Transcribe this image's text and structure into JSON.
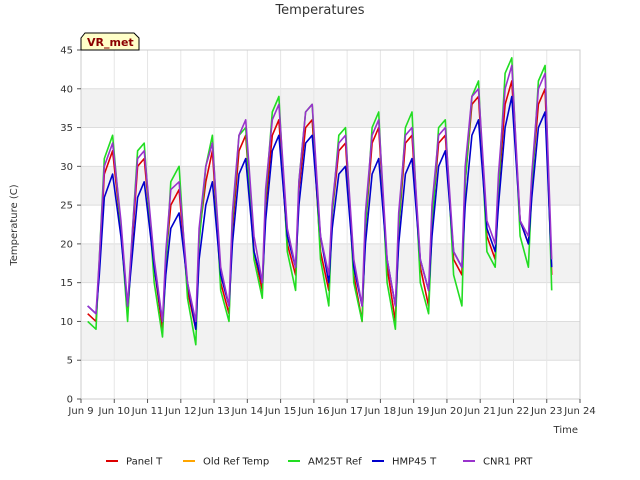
{
  "chart_data": {
    "type": "line",
    "title": "Temperatures",
    "xlabel": "Time",
    "ylabel": "Temperature (C)",
    "badge": "VR_met",
    "xlim": [
      9.0,
      24.0
    ],
    "ylim": [
      0,
      45
    ],
    "yticks": [
      0,
      5,
      10,
      15,
      20,
      25,
      30,
      35,
      40,
      45
    ],
    "xticks": [
      {
        "v": 9,
        "label": "Jun 9"
      },
      {
        "v": 10,
        "label": "Jun 10"
      },
      {
        "v": 11,
        "label": "Jun 11"
      },
      {
        "v": 12,
        "label": "Jun 12"
      },
      {
        "v": 13,
        "label": "Jun 13"
      },
      {
        "v": 14,
        "label": "Jun 14"
      },
      {
        "v": 15,
        "label": "Jun 15"
      },
      {
        "v": 16,
        "label": "Jun 16"
      },
      {
        "v": 17,
        "label": "Jun 17"
      },
      {
        "v": 18,
        "label": "Jun 18"
      },
      {
        "v": 19,
        "label": "Jun 19"
      },
      {
        "v": 20,
        "label": "Jun 20"
      },
      {
        "v": 21,
        "label": "Jun 21"
      },
      {
        "v": 22,
        "label": "Jun 22"
      },
      {
        "v": 23,
        "label": "Jun 23"
      },
      {
        "v": 24,
        "label": "Jun 24"
      }
    ],
    "grid": true,
    "legend": "bottom",
    "series": [
      {
        "name": "Panel T",
        "color": "#dd0000",
        "x": [
          9.2,
          9.45,
          9.55,
          9.7,
          9.95,
          10.2,
          10.4,
          10.55,
          10.7,
          10.9,
          11.2,
          11.45,
          11.55,
          11.7,
          11.95,
          12.2,
          12.45,
          12.55,
          12.75,
          12.95,
          13.2,
          13.45,
          13.55,
          13.75,
          13.95,
          14.2,
          14.45,
          14.55,
          14.75,
          14.95,
          15.2,
          15.45,
          15.55,
          15.75,
          15.95,
          16.2,
          16.45,
          16.55,
          16.75,
          16.95,
          17.2,
          17.45,
          17.55,
          17.75,
          17.95,
          18.2,
          18.45,
          18.55,
          18.75,
          18.95,
          19.2,
          19.45,
          19.55,
          19.75,
          19.95,
          20.2,
          20.45,
          20.55,
          20.75,
          20.95,
          21.2,
          21.45,
          21.55,
          21.75,
          21.95,
          22.2,
          22.45,
          22.55,
          22.75,
          22.95,
          23.15
        ],
        "y": [
          11,
          10,
          17,
          29,
          32,
          22,
          11,
          21,
          30,
          31,
          17,
          9,
          18,
          25,
          27,
          14,
          9,
          21,
          28,
          32,
          15,
          11,
          22,
          32,
          34,
          19,
          14,
          25,
          34,
          36,
          20,
          16,
          27,
          35,
          36,
          19,
          14,
          24,
          32,
          33,
          16,
          10,
          22,
          33,
          35,
          17,
          10,
          22,
          33,
          34,
          17,
          12,
          23,
          33,
          34,
          18,
          16,
          28,
          38,
          39,
          21,
          18,
          27,
          38,
          41,
          23,
          20,
          28,
          38,
          40,
          16
        ]
      },
      {
        "name": "Old Ref Temp",
        "color": "#ffa500",
        "x": [],
        "y": []
      },
      {
        "name": "AM25T Ref",
        "color": "#22dd22",
        "x": [
          9.2,
          9.45,
          9.55,
          9.7,
          9.95,
          10.2,
          10.4,
          10.55,
          10.7,
          10.9,
          11.2,
          11.45,
          11.55,
          11.7,
          11.95,
          12.2,
          12.45,
          12.55,
          12.75,
          12.95,
          13.2,
          13.45,
          13.55,
          13.75,
          13.95,
          14.2,
          14.45,
          14.55,
          14.75,
          14.95,
          15.2,
          15.45,
          15.55,
          15.75,
          15.95,
          16.2,
          16.45,
          16.55,
          16.75,
          16.95,
          17.2,
          17.45,
          17.55,
          17.75,
          17.95,
          18.2,
          18.45,
          18.55,
          18.75,
          18.95,
          19.2,
          19.45,
          19.55,
          19.75,
          19.95,
          20.2,
          20.45,
          20.55,
          20.75,
          20.95,
          21.2,
          21.45,
          21.55,
          21.75,
          21.95,
          22.2,
          22.45,
          22.55,
          22.75,
          22.95,
          23.15
        ],
        "y": [
          10,
          9,
          18,
          31,
          34,
          22,
          10,
          22,
          32,
          33,
          15,
          8,
          17,
          28,
          30,
          13,
          7,
          20,
          30,
          34,
          14,
          10,
          23,
          34,
          35,
          18,
          13,
          26,
          37,
          39,
          19,
          14,
          28,
          37,
          38,
          18,
          12,
          24,
          34,
          35,
          15,
          10,
          22,
          35,
          37,
          15,
          9,
          22,
          35,
          37,
          15,
          11,
          22,
          35,
          36,
          16,
          12,
          28,
          39,
          41,
          19,
          17,
          27,
          42,
          44,
          21,
          17,
          27,
          41,
          43,
          14
        ]
      },
      {
        "name": "HMP45 T",
        "color": "#0000cc",
        "x": [
          9.2,
          9.45,
          9.55,
          9.7,
          9.95,
          10.2,
          10.4,
          10.55,
          10.7,
          10.9,
          11.2,
          11.45,
          11.55,
          11.7,
          11.95,
          12.2,
          12.45,
          12.55,
          12.75,
          12.95,
          13.2,
          13.45,
          13.55,
          13.75,
          13.95,
          14.2,
          14.45,
          14.55,
          14.75,
          14.95,
          15.2,
          15.45,
          15.55,
          15.75,
          15.95,
          16.2,
          16.45,
          16.55,
          16.75,
          16.95,
          17.2,
          17.45,
          17.55,
          17.75,
          17.95,
          18.2,
          18.45,
          18.55,
          18.75,
          18.95,
          19.2,
          19.45,
          19.55,
          19.75,
          19.95,
          20.2,
          20.45,
          20.55,
          20.75,
          20.95,
          21.2,
          21.45,
          21.55,
          21.75,
          21.95,
          22.2,
          22.45,
          22.55,
          22.75,
          22.95,
          23.15
        ],
        "y": [
          12,
          11,
          16,
          26,
          29,
          21,
          12,
          19,
          26,
          28,
          17,
          10,
          16,
          22,
          24,
          15,
          9,
          18,
          25,
          28,
          16,
          12,
          20,
          29,
          31,
          19,
          15,
          23,
          32,
          34,
          21,
          17,
          25,
          33,
          34,
          21,
          15,
          22,
          29,
          30,
          17,
          12,
          20,
          29,
          31,
          18,
          12,
          20,
          29,
          31,
          18,
          14,
          21,
          30,
          32,
          19,
          17,
          25,
          34,
          36,
          22,
          19,
          25,
          35,
          39,
          23,
          20,
          26,
          35,
          37,
          17
        ]
      },
      {
        "name": "CNR1 PRT",
        "color": "#9933cc",
        "x": [
          9.2,
          9.45,
          9.55,
          9.7,
          9.95,
          10.2,
          10.4,
          10.55,
          10.7,
          10.9,
          11.2,
          11.45,
          11.55,
          11.7,
          11.95,
          12.2,
          12.45,
          12.55,
          12.75,
          12.95,
          13.2,
          13.45,
          13.55,
          13.75,
          13.95,
          14.2,
          14.45,
          14.55,
          14.75,
          14.95,
          15.2,
          15.45,
          15.55,
          15.75,
          15.95,
          16.2,
          16.45,
          16.55,
          16.75,
          16.95,
          17.2,
          17.45,
          17.55,
          17.75,
          17.95,
          18.2,
          18.45,
          18.55,
          18.75,
          18.95,
          19.2,
          19.45,
          19.55,
          19.75,
          19.95,
          20.2,
          20.45,
          20.55,
          20.75,
          20.95,
          21.2,
          21.45,
          21.55,
          21.75,
          21.95,
          22.2,
          22.45,
          22.55,
          22.75,
          22.95,
          23.15
        ],
        "y": [
          12,
          11,
          18,
          30,
          33,
          23,
          12,
          22,
          31,
          32,
          18,
          10,
          19,
          27,
          28,
          15,
          10,
          22,
          30,
          33,
          17,
          12,
          24,
          34,
          36,
          21,
          15,
          27,
          36,
          38,
          22,
          17,
          28,
          37,
          38,
          21,
          16,
          25,
          33,
          34,
          18,
          12,
          24,
          34,
          36,
          18,
          12,
          24,
          34,
          35,
          18,
          14,
          25,
          34,
          35,
          19,
          17,
          30,
          39,
          40,
          23,
          20,
          29,
          40,
          43,
          23,
          21,
          29,
          40,
          42,
          18
        ]
      }
    ]
  }
}
